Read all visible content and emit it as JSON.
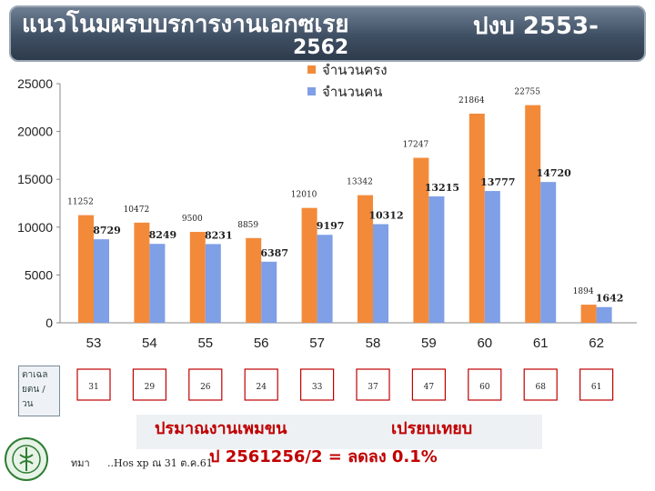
{
  "header": {
    "title_left": "แนวโนมผรบบรการงานเอกซเรย",
    "title_year": "2562",
    "title_right": "ปงบ  2553-"
  },
  "side_label": "ตาเฉล ยตน / วน",
  "note": {
    "line1_left": "ปรมาณงานเพมขน",
    "line1_right": "เปรยบเทยบ",
    "line2": "ป 2561256/2 = ลดลง 0.1%"
  },
  "footer": {
    "left": "ทมา",
    "source": "..Hos xp ณ 31 ต.ค.61"
  },
  "colors": {
    "series_visits": "#f28a3a",
    "series_people": "#7f9fe6",
    "note_text": "#c00000"
  },
  "chart_data": {
    "type": "bar",
    "categories": [
      "53",
      "54",
      "55",
      "56",
      "57",
      "58",
      "59",
      "60",
      "61",
      "62"
    ],
    "series": [
      {
        "name": "จำนวนครง",
        "values": [
          11252,
          10472,
          9500,
          8859,
          12010,
          13342,
          17247,
          21864,
          22755,
          1894
        ]
      },
      {
        "name": "จำนวนคน",
        "values": [
          8729,
          8249,
          8231,
          6387,
          9197,
          10312,
          13215,
          13777,
          14720,
          1642
        ]
      }
    ],
    "data_labels": [
      [
        "11252",
        "10472",
        "9500",
        "8859",
        "12010",
        "13342",
        "17247",
        "21864",
        "22755",
        "1894"
      ],
      [
        "8729",
        "8249",
        "8231",
        "6387",
        "9197",
        "10312",
        "13215",
        "13777",
        "14720",
        "1642"
      ]
    ],
    "ylim": [
      0,
      25000
    ],
    "yticks": [
      "0",
      "5000",
      "10000",
      "15000",
      "20000",
      "25000"
    ],
    "daily_avg": [
      "31",
      "29",
      "26",
      "24",
      "33",
      "37",
      "47",
      "60",
      "68",
      "61"
    ],
    "legend": "top-right",
    "grid": false
  }
}
